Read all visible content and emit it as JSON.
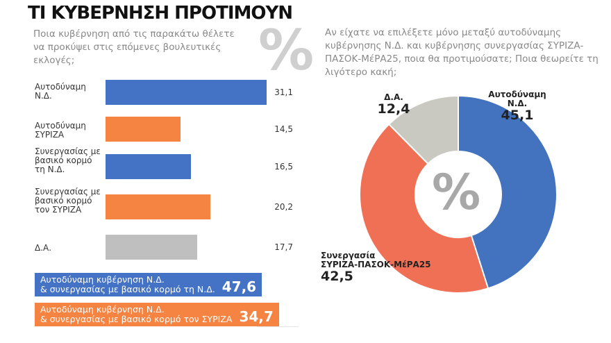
{
  "title": "ΤΙ ΚΥΒΕΡΝΗΣΗ ΠΡΟΤΙΜΟΥΝ",
  "percent_symbol": "%",
  "chart_data": [
    {
      "type": "bar",
      "orientation": "horizontal",
      "question": "Ποια κυβέρνηση από τις παρακάτω θέλετε να προκύψει στις επόμενες βουλευτικές εκλογές;",
      "categories": [
        "Αυτοδύναμη Ν.Δ.",
        "Αυτοδύναμη ΣΥΡΙΖΑ",
        "Συνεργασίας με βασικό κορμό τη Ν.Δ.",
        "Συνεργασίας με βασικό κορμό τον ΣΥΡΙΖΑ",
        "Δ.Α."
      ],
      "values": [
        31.1,
        14.5,
        16.5,
        20.2,
        17.7
      ],
      "value_labels": [
        "31,1",
        "14,5",
        "16,5",
        "20,2",
        "17,7"
      ],
      "colors": [
        "#4472c4",
        "#f58442",
        "#4472c4",
        "#f58442",
        "#bfbfbf"
      ],
      "totals": [
        {
          "text_line1": "Αυτοδύναμη κυβέρνηση Ν.Δ.",
          "text_line2": "& συνεργασίας με βασικό κορμό τη Ν.Δ.",
          "value": "47,6",
          "color": "#4472c4"
        },
        {
          "text_line1": "Αυτοδύναμη κυβέρνηση Ν.Δ.",
          "text_line2": "& συνεργασίας με βασικό κορμό τον ΣΥΡΙΖΑ",
          "value": "34,7",
          "color": "#f58442"
        }
      ]
    },
    {
      "type": "pie",
      "variant": "donut",
      "question": "Αν είχατε να επιλέξετε μόνο μεταξύ αυτοδύναμης κυβέρνησης Ν.Δ. και κυβέρνησης συνεργασίας ΣΥΡΙΖΑ-ΠΑΣΟΚ-ΜέΡΑ25, ποια θα προτιμούσατε; Ποια θεωρείτε τη λιγότερο κακή;",
      "slices": [
        {
          "label1": "Αυτοδύναμη",
          "label2": "Ν.Δ.",
          "value": 45.1,
          "value_label": "45,1",
          "color": "#4373bf"
        },
        {
          "label1": "Συνεργασία",
          "label2": "ΣΥΡΙΖΑ-ΠΑΣΟΚ-ΜέΡΑ25",
          "value": 42.5,
          "value_label": "42,5",
          "color": "#f07055"
        },
        {
          "label1": "Δ.Α.",
          "label2": "",
          "value": 12.4,
          "value_label": "12,4",
          "color": "#c9c9c1"
        }
      ]
    }
  ]
}
